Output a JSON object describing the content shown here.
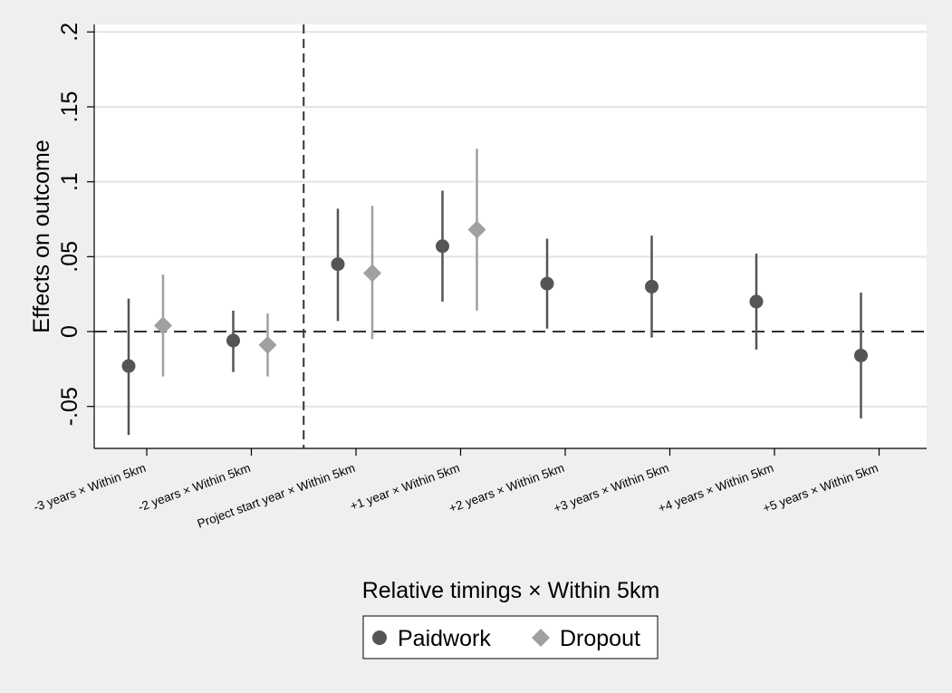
{
  "chart_data": {
    "type": "scatter",
    "title": "",
    "xlabel": "Relative timings × Within 5km",
    "ylabel": "Effects on outcome",
    "ylim": [
      -0.078,
      0.205
    ],
    "yticks": [
      {
        "value": -0.05,
        "label": "-.05"
      },
      {
        "value": 0,
        "label": "0"
      },
      {
        "value": 0.05,
        "label": ".05"
      },
      {
        "value": 0.1,
        "label": ".1"
      },
      {
        "value": 0.15,
        "label": ".15"
      },
      {
        "value": 0.2,
        "label": ".2"
      }
    ],
    "categories": [
      "-3 years × Within 5km",
      "-2 years × Within 5km",
      "Project start year × Within 5km",
      "+1 year × Within 5km",
      "+2 years × Within 5km",
      "+3 years × Within 5km",
      "+4 years × Within 5km",
      "+5 years × Within 5km"
    ],
    "reference_line_y": 0,
    "reference_line_x_between": [
      1,
      2
    ],
    "grid": true,
    "legend_position": "bottom",
    "series": [
      {
        "name": "Paidwork",
        "marker": "circle",
        "color": "#555555",
        "values": [
          -0.023,
          -0.006,
          0.045,
          0.057,
          0.032,
          0.03,
          0.02,
          -0.016
        ],
        "ci_low": [
          -0.069,
          -0.027,
          0.007,
          0.02,
          0.002,
          -0.004,
          -0.012,
          -0.058
        ],
        "ci_high": [
          0.022,
          0.014,
          0.082,
          0.094,
          0.062,
          0.064,
          0.052,
          0.026
        ]
      },
      {
        "name": "Dropout",
        "marker": "diamond",
        "color": "#a0a0a0",
        "values": [
          0.004,
          -0.009,
          0.039,
          0.068,
          null,
          null,
          null,
          null
        ],
        "ci_low": [
          -0.03,
          -0.03,
          -0.005,
          0.014,
          null,
          null,
          null,
          null
        ],
        "ci_high": [
          0.038,
          0.012,
          0.084,
          0.122,
          null,
          null,
          null,
          null
        ]
      }
    ]
  }
}
